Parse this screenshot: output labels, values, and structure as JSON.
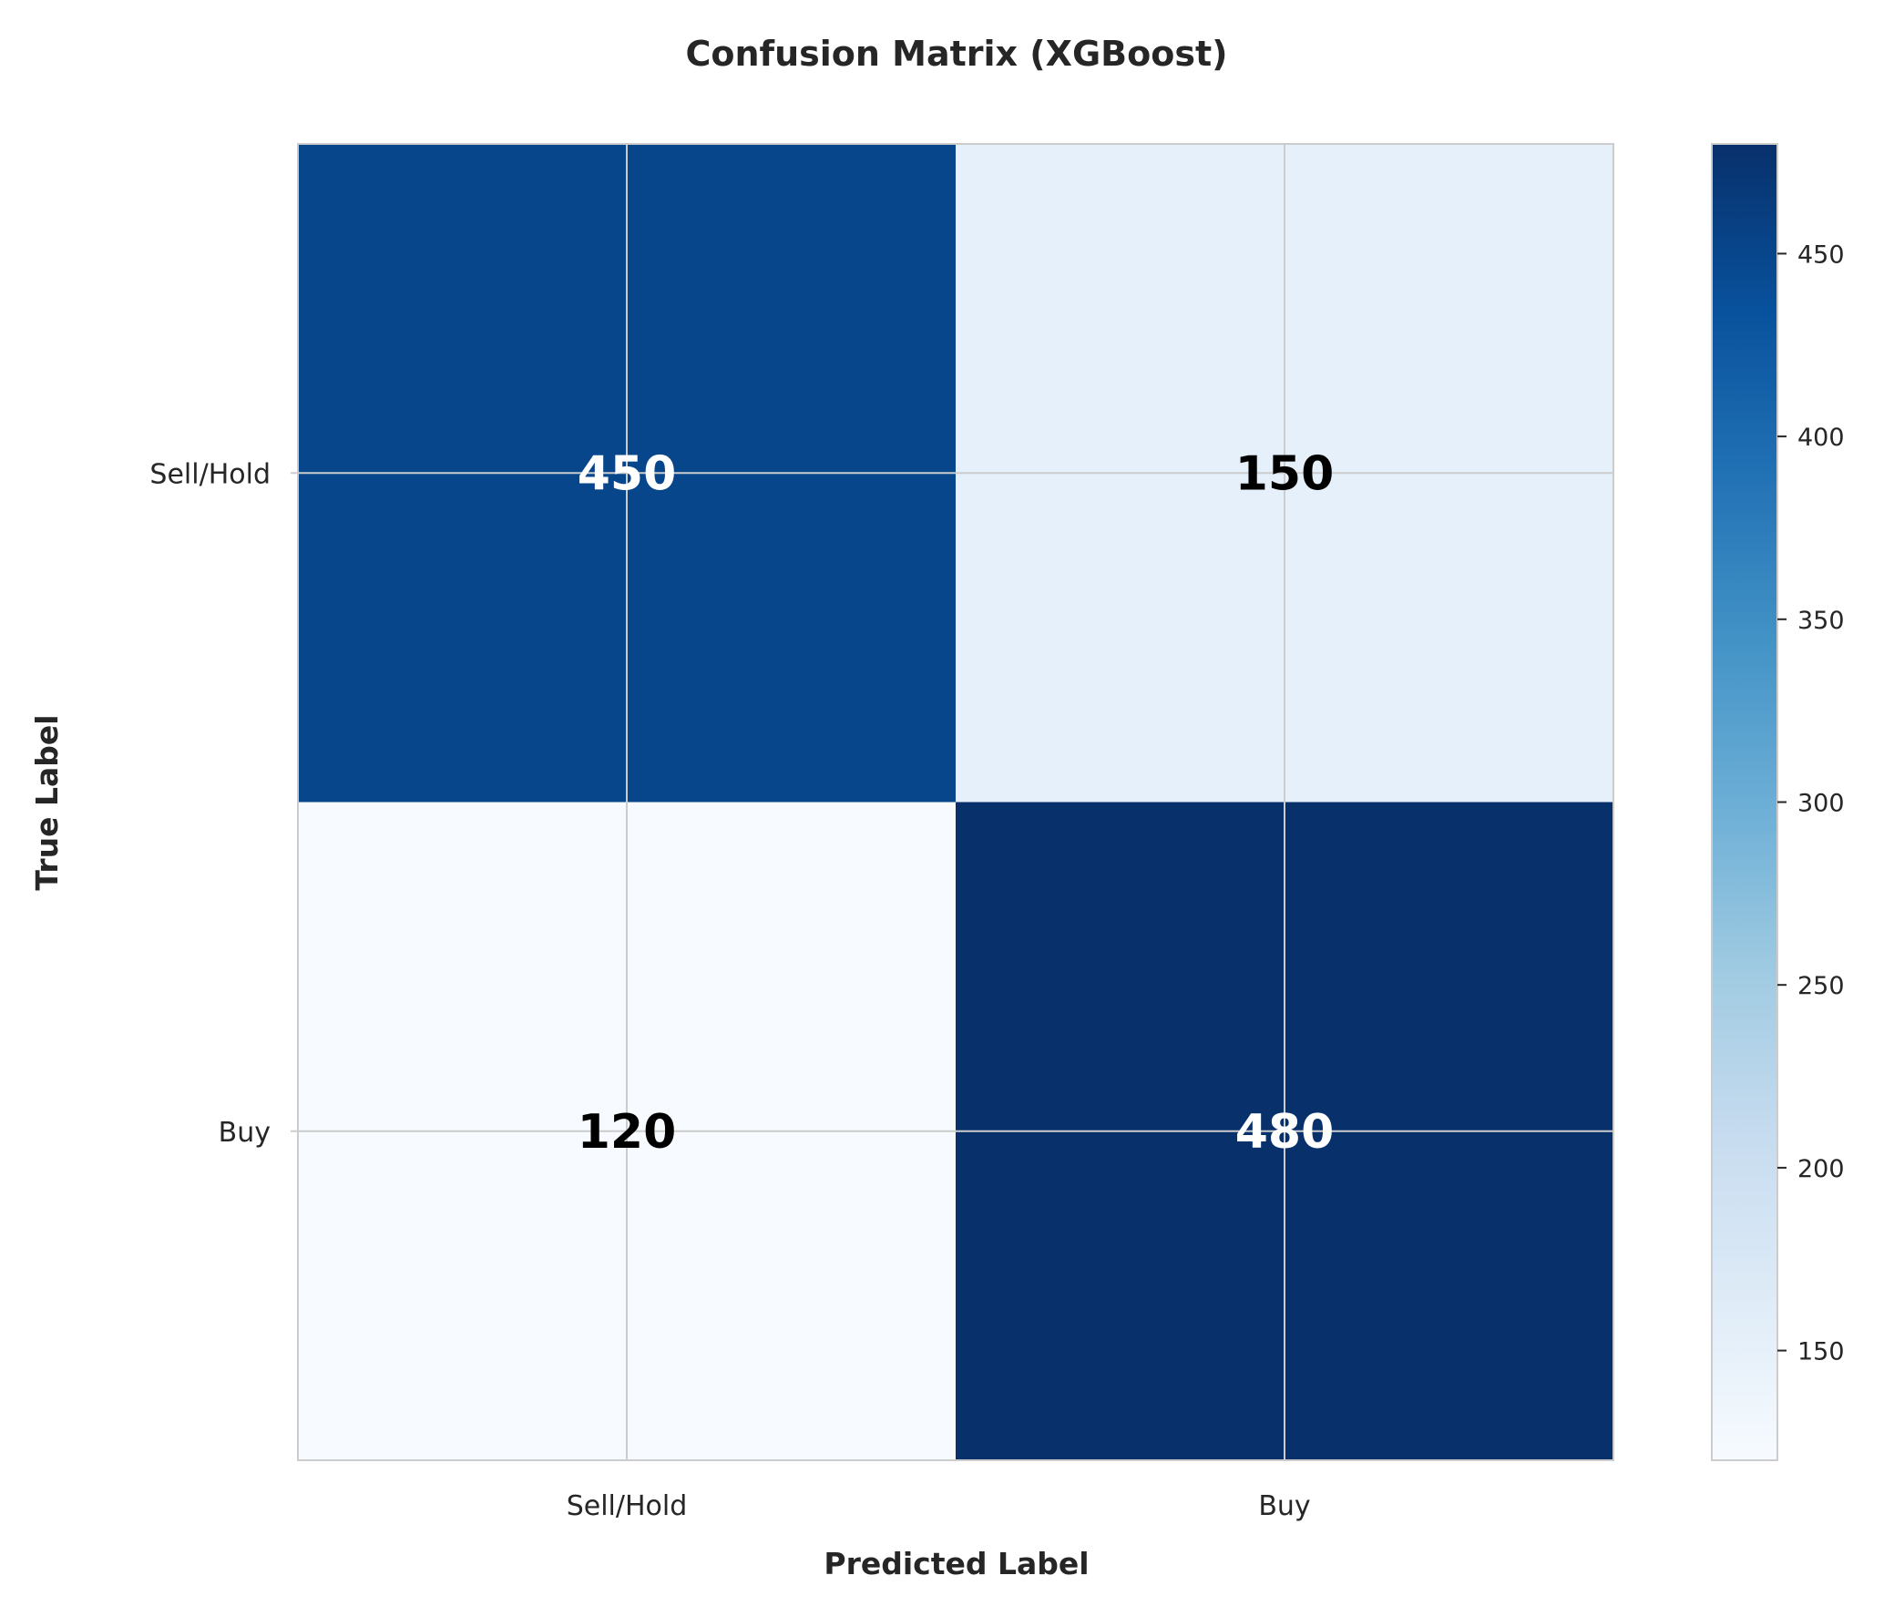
{
  "chart_data": {
    "type": "heatmap",
    "title": "Confusion Matrix (XGBoost)",
    "xlabel": "Predicted Label",
    "ylabel": "True Label",
    "x_categories": [
      "Sell/Hold",
      "Buy"
    ],
    "y_categories": [
      "Sell/Hold",
      "Buy"
    ],
    "values": [
      [
        450,
        150
      ],
      [
        120,
        480
      ]
    ],
    "colormap": "Blues",
    "colorbar": {
      "range": [
        120,
        480
      ],
      "ticks": [
        150,
        200,
        250,
        300,
        350,
        400,
        450
      ]
    },
    "grid": true,
    "colors": {
      "axis_spine": "#cccccc",
      "grid": "#cccccc",
      "text_on_dark": "#ffffff",
      "text_on_light": "#000000"
    }
  }
}
